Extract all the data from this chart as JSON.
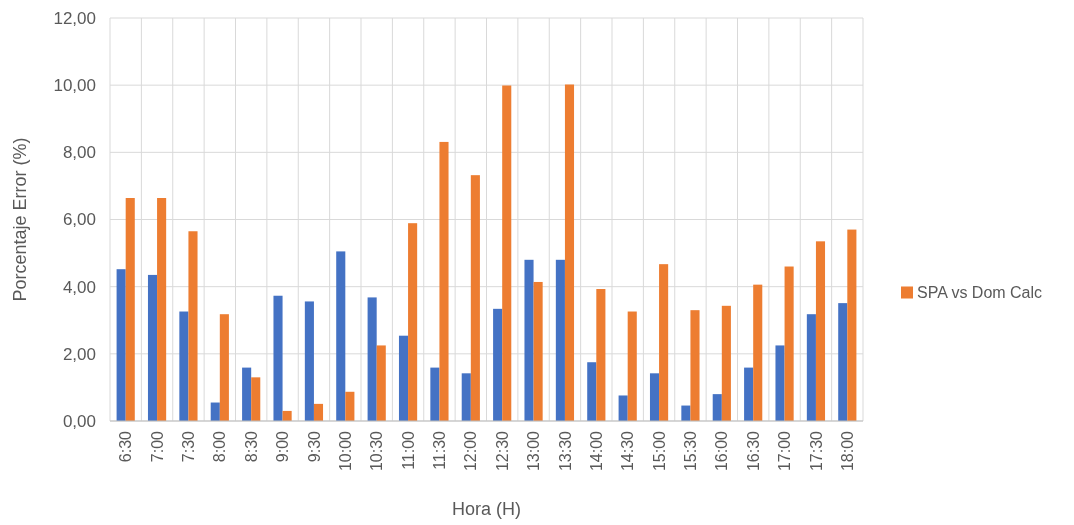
{
  "chart_data": {
    "type": "bar",
    "xlabel": "Hora (H)",
    "ylabel": "Porcentaje Error (%)",
    "categories": [
      "6:30",
      "7:00",
      "7:30",
      "8:00",
      "8:30",
      "9:00",
      "9:30",
      "10:00",
      "10:30",
      "11:00",
      "11:30",
      "12:00",
      "12:30",
      "13:00",
      "13:30",
      "14:00",
      "14:30",
      "15:00",
      "15:30",
      "16:00",
      "16:30",
      "17:00",
      "17:30",
      "18:00"
    ],
    "series": [
      {
        "color": "#4472c4",
        "values": [
          4.52,
          4.35,
          3.26,
          0.55,
          1.59,
          3.73,
          3.56,
          5.05,
          3.68,
          2.54,
          1.59,
          1.42,
          3.34,
          4.8,
          4.8,
          1.75,
          0.76,
          1.42,
          0.46,
          0.8,
          1.59,
          2.25,
          3.18,
          3.51
        ]
      },
      {
        "name": "SPA vs Dom Calc",
        "color": "#ed7d31",
        "values": [
          6.64,
          6.64,
          5.65,
          3.18,
          1.3,
          0.3,
          0.51,
          0.87,
          2.25,
          5.89,
          8.31,
          7.32,
          9.99,
          4.14,
          10.02,
          3.93,
          3.26,
          4.67,
          3.3,
          3.43,
          4.06,
          4.6,
          5.35,
          5.7
        ]
      }
    ],
    "ylim": [
      0,
      12
    ],
    "yticks": [
      {
        "value": 0,
        "label": "0,00"
      },
      {
        "value": 2,
        "label": "2,00"
      },
      {
        "value": 4,
        "label": "4,00"
      },
      {
        "value": 6,
        "label": "6,00"
      },
      {
        "value": 8,
        "label": "8,00"
      },
      {
        "value": 10,
        "label": "10,00"
      },
      {
        "value": 12,
        "label": "12,00"
      }
    ],
    "grid": true,
    "legend": "right"
  }
}
